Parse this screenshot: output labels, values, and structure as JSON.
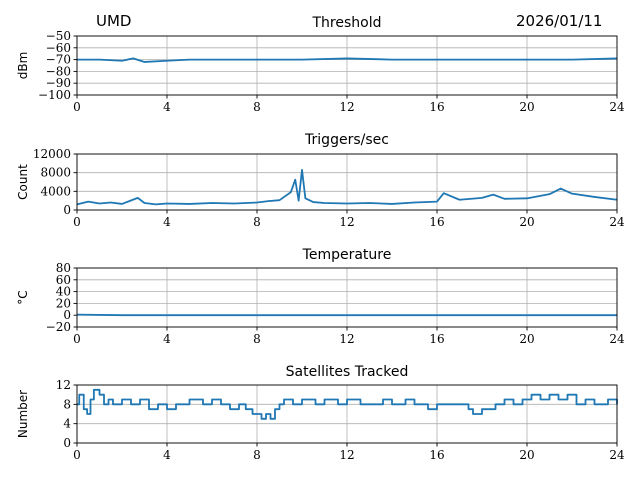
{
  "header": {
    "site": "UMD",
    "date": "2026/01/11"
  },
  "colors": {
    "series": "#1f77b4",
    "grid": "#b0b0b0",
    "axes": "#000000"
  },
  "chart_data": [
    {
      "type": "line",
      "title": "Threshold",
      "ylabel": "dBm",
      "xlim": [
        0,
        24
      ],
      "ylim": [
        -100,
        -50
      ],
      "xticks": [
        0,
        4,
        8,
        12,
        16,
        20,
        24
      ],
      "yticks": [
        -100,
        -90,
        -80,
        -70,
        -60,
        -50
      ],
      "ytick_labels": [
        "−100",
        "−90",
        "−80",
        "−70",
        "−60",
        "−50"
      ],
      "grid": true,
      "series": [
        {
          "x": [
            0,
            1,
            2,
            2.5,
            3,
            4,
            5,
            6,
            8,
            10,
            12,
            14,
            16,
            18,
            20,
            22,
            24
          ],
          "y": [
            -70,
            -70,
            -71,
            -69,
            -72,
            -71,
            -70,
            -70,
            -70,
            -70,
            -69,
            -70,
            -70,
            -70,
            -70,
            -70,
            -69
          ]
        }
      ]
    },
    {
      "type": "line",
      "title": "Triggers/sec",
      "ylabel": "Count",
      "xlim": [
        0,
        24
      ],
      "ylim": [
        0,
        12000
      ],
      "xticks": [
        0,
        4,
        8,
        12,
        16,
        20,
        24
      ],
      "yticks": [
        0,
        4000,
        8000,
        12000
      ],
      "ytick_labels": [
        "0",
        "4000",
        "8000",
        "12000"
      ],
      "grid": true,
      "series": [
        {
          "x": [
            0,
            0.5,
            1,
            1.5,
            2,
            2.7,
            3,
            3.5,
            4,
            5,
            6,
            7,
            8,
            8.5,
            9,
            9.5,
            9.7,
            9.85,
            10,
            10.15,
            10.5,
            11,
            12,
            13,
            14,
            15,
            16,
            16.3,
            17,
            18,
            18.5,
            19,
            20,
            21,
            21.5,
            22,
            23,
            24
          ],
          "y": [
            1200,
            1800,
            1400,
            1600,
            1300,
            2600,
            1500,
            1200,
            1400,
            1300,
            1500,
            1400,
            1600,
            1900,
            2100,
            3800,
            6500,
            2000,
            8600,
            2500,
            1700,
            1500,
            1400,
            1500,
            1300,
            1600,
            1800,
            3600,
            2200,
            2600,
            3300,
            2400,
            2500,
            3400,
            4600,
            3500,
            2800,
            2200
          ]
        }
      ]
    },
    {
      "type": "line",
      "title": "Temperature",
      "ylabel": "°C",
      "xlim": [
        0,
        24
      ],
      "ylim": [
        -20,
        80
      ],
      "xticks": [
        0,
        4,
        8,
        12,
        16,
        20,
        24
      ],
      "yticks": [
        -20,
        0,
        20,
        40,
        60,
        80
      ],
      "ytick_labels": [
        "−20",
        "0",
        "20",
        "40",
        "60",
        "80"
      ],
      "grid": true,
      "series": [
        {
          "x": [
            0,
            2,
            4,
            6,
            8,
            10,
            12,
            14,
            16,
            18,
            20,
            22,
            24
          ],
          "y": [
            1,
            0,
            0,
            0,
            0,
            0,
            0,
            0,
            0,
            0,
            0,
            0,
            0
          ]
        }
      ]
    },
    {
      "type": "line",
      "title": "Satellites Tracked",
      "ylabel": "Number",
      "xlim": [
        0,
        24
      ],
      "ylim": [
        0,
        12
      ],
      "xticks": [
        0,
        4,
        8,
        12,
        16,
        20,
        24
      ],
      "yticks": [
        0,
        4,
        8,
        12
      ],
      "ytick_labels": [
        "0",
        "4",
        "8",
        "12"
      ],
      "grid": true,
      "step": true,
      "series": [
        {
          "x": [
            0,
            0.1,
            0.3,
            0.45,
            0.6,
            0.75,
            1.0,
            1.2,
            1.4,
            1.6,
            2.0,
            2.4,
            2.8,
            3.2,
            3.6,
            4.0,
            4.4,
            5.0,
            5.6,
            6.0,
            6.4,
            6.8,
            7.2,
            7.5,
            7.8,
            8.2,
            8.4,
            8.6,
            8.8,
            9.0,
            9.2,
            9.6,
            10.0,
            10.6,
            11.0,
            11.6,
            12.0,
            12.6,
            13.0,
            13.6,
            14.0,
            14.6,
            15.0,
            15.6,
            16.0,
            16.6,
            17.0,
            17.4,
            17.6,
            18.0,
            18.6,
            19.0,
            19.4,
            19.8,
            20.2,
            20.6,
            21.0,
            21.4,
            21.8,
            22.2,
            22.6,
            23.0,
            23.6,
            24
          ],
          "y": [
            8,
            10,
            7,
            6,
            9,
            11,
            10,
            8,
            9,
            8,
            9,
            8,
            9,
            7,
            8,
            7,
            8,
            9,
            8,
            9,
            8,
            7,
            8,
            7,
            6,
            5,
            6,
            5,
            7,
            8,
            9,
            8,
            9,
            8,
            9,
            8,
            9,
            8,
            8,
            9,
            8,
            9,
            8,
            7,
            8,
            8,
            8,
            7,
            6,
            7,
            8,
            9,
            8,
            9,
            10,
            9,
            10,
            9,
            10,
            8,
            9,
            8,
            9,
            8
          ]
        }
      ]
    }
  ]
}
